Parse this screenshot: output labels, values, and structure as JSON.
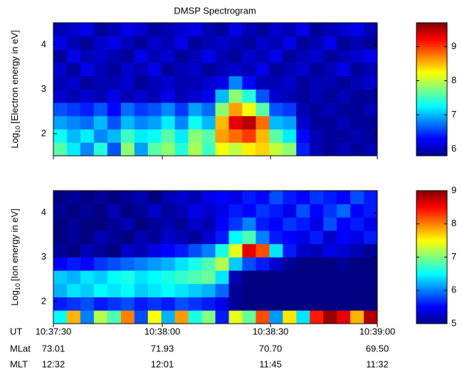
{
  "title": "DMSP Spectrogram",
  "chart_data": [
    {
      "type": "heatmap",
      "ylabel": [
        "Log",
        "10",
        "[Electron energy in eV]"
      ],
      "ylim": [
        1.5,
        4.5
      ],
      "yticks": [
        2,
        3,
        4
      ],
      "zlim": [
        5.8,
        9.7
      ],
      "zticks": [
        6,
        7,
        8,
        9
      ],
      "values": [
        [
          7.6,
          7.2,
          6.8,
          7.4,
          6.6,
          7.8,
          6.9,
          7.6,
          7.8,
          7.4,
          7.9,
          7.5,
          8.2,
          8.0,
          8.3,
          8.4,
          8.0,
          7.8,
          6.4,
          6.0,
          5.9,
          6.0,
          5.9,
          6.0
        ],
        [
          7.3,
          7.0,
          7.2,
          6.8,
          7.0,
          7.5,
          7.2,
          7.3,
          7.6,
          7.2,
          7.8,
          7.6,
          8.6,
          8.8,
          9.0,
          8.5,
          7.6,
          7.2,
          6.3,
          6.0,
          5.9,
          5.9,
          6.0,
          5.9
        ],
        [
          6.9,
          6.8,
          6.7,
          7.0,
          6.6,
          7.0,
          6.8,
          6.9,
          7.2,
          6.8,
          7.3,
          7.0,
          8.5,
          9.3,
          9.5,
          8.8,
          7.0,
          6.9,
          6.1,
          5.9,
          5.9,
          6.0,
          5.9,
          5.9
        ],
        [
          6.6,
          6.5,
          6.4,
          6.6,
          6.3,
          6.7,
          6.5,
          6.6,
          6.8,
          6.5,
          6.9,
          6.7,
          7.8,
          8.6,
          8.2,
          7.6,
          6.6,
          6.5,
          6.0,
          5.9,
          6.0,
          5.9,
          5.9,
          6.0
        ],
        [
          6.1,
          6.0,
          6.1,
          6.0,
          6.2,
          6.0,
          6.1,
          6.0,
          6.2,
          6.0,
          6.1,
          6.2,
          7.0,
          7.8,
          7.4,
          6.6,
          6.1,
          6.0,
          5.9,
          6.0,
          5.9,
          6.0,
          5.9,
          5.9
        ],
        [
          6.0,
          6.1,
          5.9,
          6.0,
          6.0,
          6.1,
          5.9,
          6.0,
          6.1,
          6.0,
          6.0,
          6.1,
          6.2,
          6.8,
          6.3,
          6.0,
          6.0,
          6.1,
          5.9,
          6.0,
          6.0,
          5.9,
          6.0,
          6.1
        ],
        [
          6.1,
          5.9,
          6.2,
          6.0,
          5.9,
          6.1,
          6.0,
          6.2,
          5.9,
          6.0,
          6.1,
          5.9,
          6.0,
          6.1,
          6.0,
          6.2,
          5.9,
          6.0,
          6.1,
          5.9,
          6.0,
          6.2,
          5.9,
          6.0
        ],
        [
          5.9,
          6.2,
          6.0,
          6.1,
          6.0,
          5.9,
          6.2,
          6.0,
          6.1,
          5.9,
          6.0,
          6.2,
          6.0,
          5.9,
          6.1,
          6.0,
          6.2,
          5.9,
          6.0,
          6.1,
          5.9,
          6.0,
          6.1,
          6.2
        ],
        [
          6.2,
          6.0,
          5.9,
          6.1,
          6.2,
          6.0,
          5.9,
          6.1,
          6.0,
          6.2,
          5.9,
          6.0,
          6.1,
          6.0,
          5.9,
          6.1,
          6.0,
          6.2,
          5.9,
          6.0,
          6.2,
          5.9,
          6.0,
          5.9
        ],
        [
          6.0,
          6.1,
          6.2,
          5.9,
          6.0,
          6.2,
          6.1,
          5.9,
          6.0,
          6.1,
          6.2,
          6.0,
          5.9,
          6.2,
          6.0,
          5.9,
          6.1,
          6.0,
          6.2,
          5.9,
          6.0,
          6.1,
          6.2,
          6.0
        ]
      ]
    },
    {
      "type": "heatmap",
      "ylabel": [
        "Log",
        "10",
        "[Ion energy in eV]"
      ],
      "ylim": [
        1.5,
        4.5
      ],
      "yticks": [
        2,
        3,
        4
      ],
      "zlim": [
        5,
        9
      ],
      "zticks": [
        5,
        6,
        7,
        8,
        9
      ],
      "values": [
        [
          6.5,
          7.8,
          6.0,
          7.2,
          6.8,
          8.0,
          5.8,
          7.5,
          6.2,
          7.9,
          6.6,
          7.0,
          5.6,
          7.4,
          6.9,
          8.2,
          6.1,
          7.6,
          6.4,
          8.4,
          8.9,
          8.6,
          7.8,
          8.8
        ],
        [
          5.6,
          5.7,
          5.8,
          5.6,
          5.7,
          5.8,
          5.6,
          5.7,
          5.6,
          5.8,
          5.7,
          5.6,
          5.4,
          5.1,
          5.0,
          5.0,
          5.0,
          5.0,
          5.0,
          5.0,
          5.0,
          5.0,
          5.0,
          5.0
        ],
        [
          6.2,
          6.4,
          6.3,
          6.5,
          6.4,
          6.5,
          6.3,
          6.4,
          6.5,
          6.4,
          6.3,
          6.2,
          5.9,
          5.1,
          5.0,
          5.0,
          5.0,
          5.0,
          5.0,
          5.0,
          5.0,
          5.0,
          5.0,
          5.0
        ],
        [
          6.3,
          6.2,
          6.4,
          6.3,
          6.5,
          6.6,
          6.4,
          6.5,
          6.6,
          6.7,
          6.8,
          6.9,
          6.4,
          5.2,
          5.0,
          5.0,
          5.0,
          5.0,
          5.0,
          5.0,
          5.0,
          5.0,
          5.0,
          5.0
        ],
        [
          5.5,
          5.6,
          5.5,
          5.7,
          5.8,
          5.9,
          6.0,
          6.1,
          6.2,
          6.4,
          6.6,
          6.8,
          7.2,
          6.3,
          5.8,
          5.6,
          5.3,
          5.1,
          5.0,
          5.0,
          5.0,
          5.1,
          5.0,
          5.0
        ],
        [
          5.1,
          5.0,
          5.2,
          5.1,
          5.0,
          5.3,
          5.2,
          5.4,
          5.5,
          5.6,
          5.8,
          6.0,
          6.6,
          7.4,
          8.6,
          8.2,
          6.4,
          5.6,
          5.3,
          5.2,
          5.4,
          5.3,
          5.2,
          5.1
        ],
        [
          5.0,
          5.1,
          5.0,
          5.2,
          5.1,
          5.0,
          5.2,
          5.1,
          5.3,
          5.2,
          5.1,
          5.3,
          5.6,
          6.5,
          6.8,
          6.0,
          5.6,
          5.5,
          5.4,
          5.6,
          5.3,
          5.5,
          5.4,
          5.6
        ],
        [
          5.0,
          5.1,
          5.0,
          5.0,
          5.1,
          5.2,
          5.0,
          5.1,
          5.2,
          5.1,
          5.3,
          5.2,
          5.5,
          5.7,
          6.0,
          5.6,
          5.5,
          5.7,
          5.6,
          5.4,
          5.8,
          5.5,
          5.6,
          5.4
        ],
        [
          5.1,
          5.0,
          5.1,
          5.0,
          5.2,
          5.0,
          5.1,
          5.3,
          5.1,
          5.2,
          5.4,
          5.3,
          5.4,
          5.6,
          5.5,
          5.7,
          5.6,
          5.4,
          5.8,
          5.5,
          5.7,
          5.9,
          5.5,
          5.6
        ],
        [
          5.0,
          5.1,
          5.0,
          5.1,
          5.0,
          5.1,
          5.2,
          5.0,
          5.2,
          5.3,
          5.2,
          5.4,
          5.5,
          5.4,
          5.6,
          5.5,
          5.8,
          5.6,
          5.5,
          5.7,
          5.6,
          5.5,
          5.8,
          5.6
        ]
      ]
    }
  ],
  "ephemeris": {
    "labels": [
      "UT",
      "MLat",
      "MLT"
    ],
    "rows": [
      [
        "10:37:30",
        "10:38:00",
        "10:38:30",
        "10:39:00"
      ],
      [
        "73.01",
        "71.93",
        "70.70",
        "69.50"
      ],
      [
        "12:32",
        "12:01",
        "11:45",
        "11:32"
      ]
    ]
  }
}
